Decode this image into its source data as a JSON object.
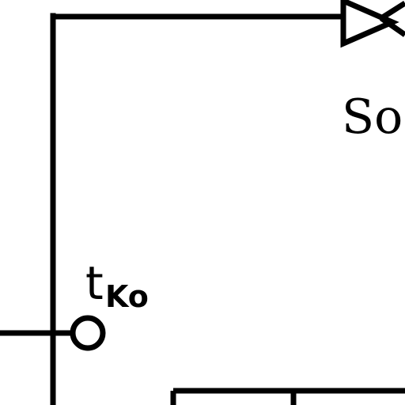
{
  "diagram": {
    "ink_color": "#000000",
    "background_color": "#ffffff",
    "labels": {
      "terminal_main": "t",
      "terminal_sub": "Ko",
      "partial_label": "So"
    },
    "symbols": {
      "terminal": "open-circle-terminal",
      "triangle": "triangle-right-symbol"
    }
  }
}
